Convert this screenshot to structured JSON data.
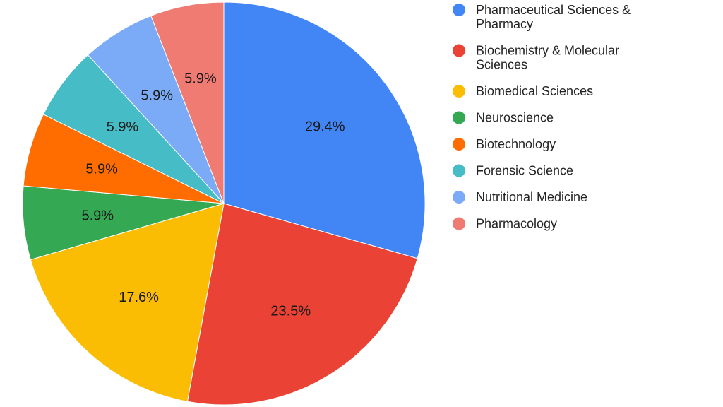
{
  "chart_data": {
    "type": "pie",
    "title": "",
    "legend_position": "right",
    "slices": [
      {
        "label": "Pharmaceutical Sciences & Pharmacy",
        "legend_lines": [
          "Pharmaceutical Sciences &",
          "Pharmacy"
        ],
        "value": 29.4,
        "display": "29.4%",
        "color": "#4285F4"
      },
      {
        "label": "Biochemistry & Molecular Sciences",
        "legend_lines": [
          "Biochemistry & Molecular",
          "Sciences"
        ],
        "value": 23.5,
        "display": "23.5%",
        "color": "#EA4335"
      },
      {
        "label": "Biomedical Sciences",
        "legend_lines": [
          "Biomedical Sciences"
        ],
        "value": 17.6,
        "display": "17.6%",
        "color": "#FBBC04"
      },
      {
        "label": "Neuroscience",
        "legend_lines": [
          "Neuroscience"
        ],
        "value": 5.9,
        "display": "5.9%",
        "color": "#34A853"
      },
      {
        "label": "Biotechnology",
        "legend_lines": [
          "Biotechnology"
        ],
        "value": 5.9,
        "display": "5.9%",
        "color": "#FF6D01"
      },
      {
        "label": "Forensic Science",
        "legend_lines": [
          "Forensic Science"
        ],
        "value": 5.9,
        "display": "5.9%",
        "color": "#46BDC6"
      },
      {
        "label": "Nutritional Medicine",
        "legend_lines": [
          "Nutritional Medicine"
        ],
        "value": 5.9,
        "display": "5.9%",
        "color": "#7BAAF7"
      },
      {
        "label": "Pharmacology",
        "legend_lines": [
          "Pharmacology"
        ],
        "value": 5.9,
        "display": "5.9%",
        "color": "#F07B72"
      }
    ]
  }
}
